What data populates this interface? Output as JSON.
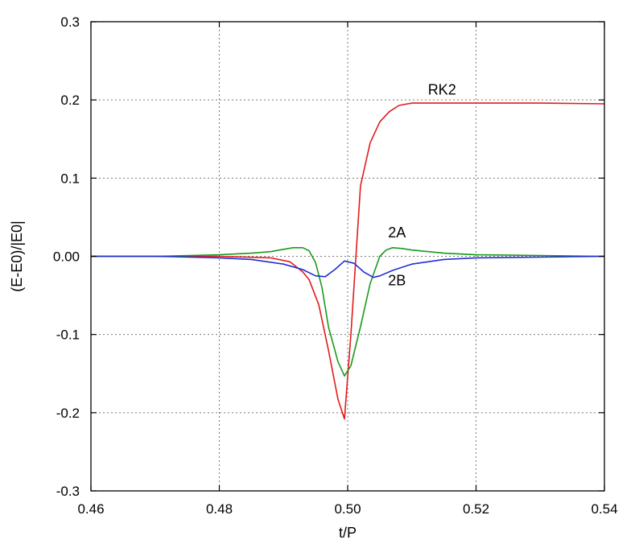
{
  "chart_data": {
    "type": "line",
    "title": "",
    "xlabel": "t/P",
    "ylabel": "(E-E0)/|E0|",
    "xlim": [
      0.46,
      0.54
    ],
    "ylim": [
      -0.3,
      0.3
    ],
    "grid": true,
    "xticks": [
      0.46,
      0.48,
      0.5,
      0.52,
      0.54
    ],
    "xtick_labels": [
      "0.46",
      "0.48",
      "0.50",
      "0.52",
      "0.54"
    ],
    "yticks": [
      -0.3,
      -0.2,
      -0.1,
      0.0,
      0.1,
      0.2,
      0.3
    ],
    "ytick_labels": [
      "-0.3",
      "-0.2",
      "-0.1",
      "0.00",
      "0.1",
      "0.2",
      "0.3"
    ],
    "series": [
      {
        "name": "RK2",
        "color": "#e41a1c",
        "x": [
          0.46,
          0.47,
          0.48,
          0.488,
          0.491,
          0.493,
          0.494,
          0.4955,
          0.497,
          0.4985,
          0.4995,
          0.5005,
          0.502,
          0.5035,
          0.505,
          0.5065,
          0.508,
          0.51,
          0.515,
          0.52,
          0.53,
          0.54
        ],
        "y": [
          0.0,
          0.0,
          0.0,
          -0.002,
          -0.007,
          -0.02,
          -0.03,
          -0.062,
          -0.12,
          -0.183,
          -0.208,
          -0.1,
          0.09,
          0.145,
          0.172,
          0.185,
          0.193,
          0.196,
          0.196,
          0.196,
          0.196,
          0.195
        ]
      },
      {
        "name": "2A",
        "color": "#1a9a1a",
        "x": [
          0.46,
          0.47,
          0.48,
          0.485,
          0.488,
          0.49,
          0.4915,
          0.493,
          0.494,
          0.495,
          0.496,
          0.497,
          0.4985,
          0.4995,
          0.5005,
          0.502,
          0.5035,
          0.505,
          0.506,
          0.507,
          0.5085,
          0.51,
          0.515,
          0.52,
          0.53,
          0.54
        ],
        "y": [
          0.0,
          0.0,
          0.002,
          0.004,
          0.006,
          0.009,
          0.011,
          0.011,
          0.007,
          -0.008,
          -0.04,
          -0.09,
          -0.135,
          -0.153,
          -0.14,
          -0.09,
          -0.035,
          0.0,
          0.008,
          0.011,
          0.01,
          0.008,
          0.004,
          0.002,
          0.001,
          0.0
        ]
      },
      {
        "name": "2B",
        "color": "#1f2fd0",
        "x": [
          0.46,
          0.47,
          0.48,
          0.485,
          0.49,
          0.493,
          0.495,
          0.4965,
          0.498,
          0.4995,
          0.501,
          0.5025,
          0.504,
          0.505,
          0.507,
          0.51,
          0.515,
          0.52,
          0.53,
          0.54
        ],
        "y": [
          0.0,
          0.0,
          -0.002,
          -0.004,
          -0.01,
          -0.017,
          -0.025,
          -0.026,
          -0.017,
          -0.006,
          -0.009,
          -0.02,
          -0.027,
          -0.025,
          -0.018,
          -0.01,
          -0.004,
          -0.002,
          -0.001,
          0.0
        ]
      }
    ],
    "annotations": [
      {
        "text": "RK2",
        "x": 0.5125,
        "y": 0.207,
        "series": "RK2"
      },
      {
        "text": "2A",
        "x": 0.5063,
        "y": 0.024,
        "series": "2A"
      },
      {
        "text": "2B",
        "x": 0.5063,
        "y": -0.037,
        "series": "2B"
      }
    ]
  }
}
